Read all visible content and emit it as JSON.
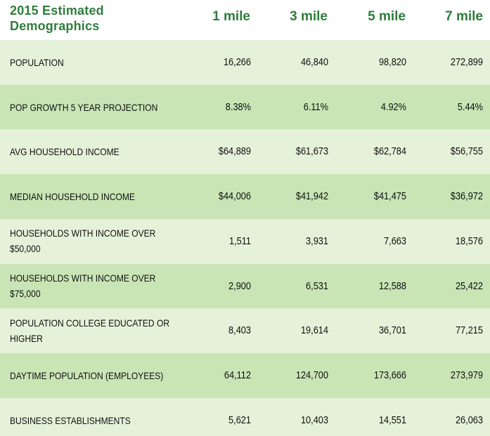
{
  "header": {
    "title_line1": "2015 Estimated",
    "title_line2": "Demographics",
    "columns": [
      "1 mile",
      "3 mile",
      "5 mile",
      "7 mile"
    ]
  },
  "rows": [
    {
      "label1": "POPULATION",
      "label2": "",
      "values": [
        "16,266",
        "46,840",
        "98,820",
        "272,899"
      ]
    },
    {
      "label1": "POP GROWTH 5 YEAR PROJECTION",
      "label2": "",
      "values": [
        "8.38%",
        "6.11%",
        "4.92%",
        "5.44%"
      ]
    },
    {
      "label1": "AVG HOUSEHOLD INCOME",
      "label2": "",
      "values": [
        "$64,889",
        "$61,673",
        "$62,784",
        "$56,755"
      ]
    },
    {
      "label1": "MEDIAN HOUSEHOLD INCOME",
      "label2": "",
      "values": [
        "$44,006",
        "$41,942",
        "$41,475",
        "$36,972"
      ]
    },
    {
      "label1": "HOUSEHOLDS WITH INCOME OVER",
      "label2": "$50,000",
      "values": [
        "1,511",
        "3,931",
        "7,663",
        "18,576"
      ]
    },
    {
      "label1": "HOUSEHOLDS WITH INCOME OVER",
      "label2": "$75,000",
      "values": [
        "2,900",
        "6,531",
        "12,588",
        "25,422"
      ]
    },
    {
      "label1": "POPULATION COLLEGE EDUCATED OR",
      "label2": "HIGHER",
      "values": [
        "8,403",
        "19,614",
        "36,701",
        "77,215"
      ]
    },
    {
      "label1": "DAYTIME POPULATION (EMPLOYEES)",
      "label2": "",
      "values": [
        "64,112",
        "124,700",
        "173,666",
        "273,979"
      ]
    },
    {
      "label1": "BUSINESS ESTABLISHMENTS",
      "label2": "",
      "values": [
        "5,621",
        "10,403",
        "14,551",
        "26,063"
      ]
    }
  ]
}
